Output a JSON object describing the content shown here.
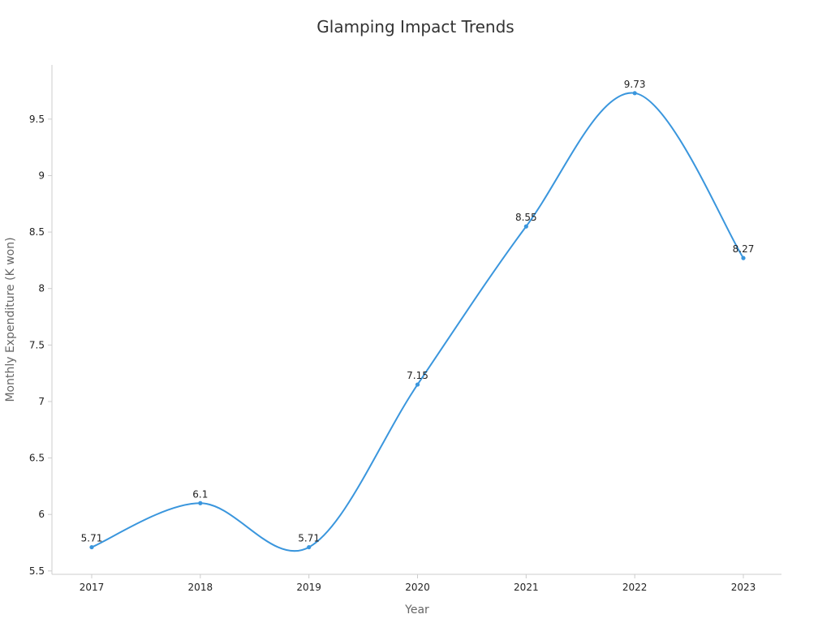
{
  "chart_data": {
    "type": "line",
    "title": "Glamping Impact Trends",
    "xlabel": "Year",
    "ylabel": "Monthly Expenditure (K won)",
    "x": [
      "2017",
      "2018",
      "2019",
      "2020",
      "2021",
      "2022",
      "2023"
    ],
    "series": [
      {
        "values": [
          5.71,
          6.1,
          5.71,
          7.15,
          8.55,
          9.73,
          8.27
        ]
      }
    ],
    "yticks": [
      "5.5",
      "6",
      "6.5",
      "7",
      "7.5",
      "8",
      "8.5",
      "9",
      "9.5"
    ],
    "ylim": [
      5.47,
      9.98
    ],
    "smooth": true,
    "grid": false,
    "line_color": "#3a96dd"
  }
}
